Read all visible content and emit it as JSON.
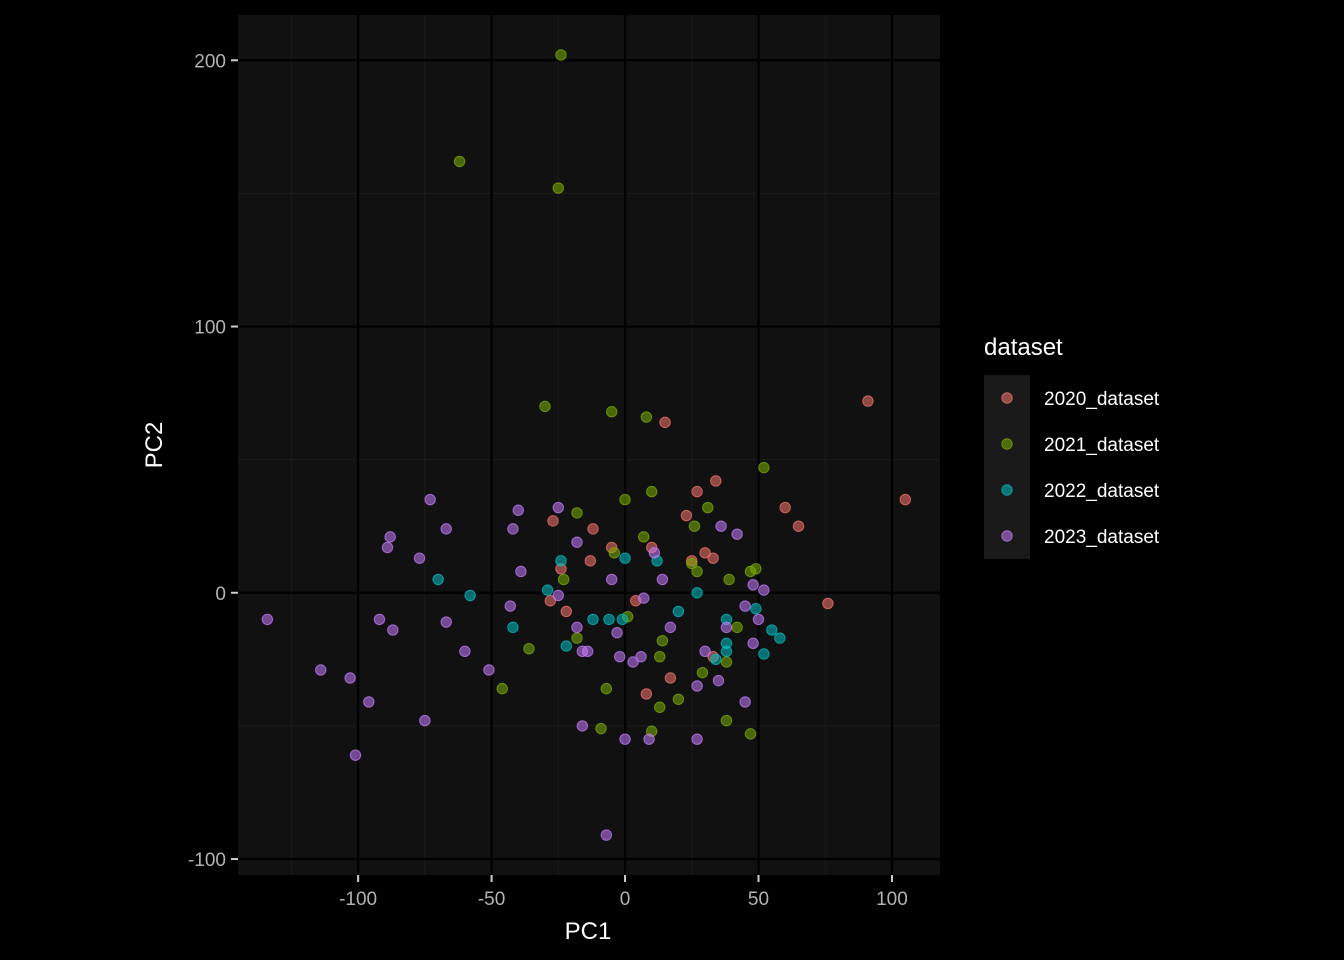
{
  "chart_data": {
    "type": "scatter",
    "xlabel": "PC1",
    "ylabel": "PC2",
    "xlim": [
      -145,
      118
    ],
    "ylim": [
      -106,
      217
    ],
    "x_ticks": [
      -100,
      -50,
      0,
      50,
      100
    ],
    "x_tick_labels": [
      "-100",
      "-50",
      "0",
      "50",
      "100"
    ],
    "y_ticks": [
      -100,
      0,
      100,
      200
    ],
    "y_tick_labels": [
      "-100",
      "0",
      "100",
      "200"
    ],
    "grid": true,
    "legend_title": "dataset",
    "legend_position": "right",
    "colors": {
      "background": "#000000",
      "panel": "#111111",
      "grid_major": "#000000",
      "grid_minor": "#1a1a1a",
      "legend_key": "#1a1a1a"
    },
    "series": [
      {
        "name": "2020_dataset",
        "color": "#F8766D",
        "points": [
          [
            91,
            72
          ],
          [
            105,
            35
          ],
          [
            76,
            -4
          ],
          [
            60,
            32
          ],
          [
            65,
            25
          ],
          [
            34,
            42
          ],
          [
            27,
            38
          ],
          [
            15,
            64
          ],
          [
            23,
            29
          ],
          [
            30,
            15
          ],
          [
            33,
            13
          ],
          [
            33,
            -24
          ],
          [
            25,
            12
          ],
          [
            10,
            17
          ],
          [
            4,
            -3
          ],
          [
            -5,
            17
          ],
          [
            -13,
            12
          ],
          [
            -12,
            24
          ],
          [
            -22,
            -7
          ],
          [
            -24,
            9
          ],
          [
            -28,
            -3
          ],
          [
            -27,
            27
          ],
          [
            17,
            -32
          ],
          [
            8,
            -38
          ]
        ]
      },
      {
        "name": "2021_dataset",
        "color": "#7CAE00",
        "points": [
          [
            -24,
            202
          ],
          [
            -62,
            162
          ],
          [
            -25,
            152
          ],
          [
            -30,
            70
          ],
          [
            -5,
            68
          ],
          [
            8,
            66
          ],
          [
            52,
            47
          ],
          [
            0,
            35
          ],
          [
            10,
            38
          ],
          [
            31,
            32
          ],
          [
            26,
            25
          ],
          [
            7,
            21
          ],
          [
            -4,
            15
          ],
          [
            -18,
            30
          ],
          [
            -23,
            5
          ],
          [
            25,
            11
          ],
          [
            27,
            8
          ],
          [
            47,
            8
          ],
          [
            49,
            9
          ],
          [
            39,
            5
          ],
          [
            42,
            -13
          ],
          [
            1,
            -9
          ],
          [
            -18,
            -17
          ],
          [
            -36,
            -21
          ],
          [
            14,
            -18
          ],
          [
            13,
            -24
          ],
          [
            29,
            -30
          ],
          [
            20,
            -40
          ],
          [
            13,
            -43
          ],
          [
            -7,
            -36
          ],
          [
            -46,
            -36
          ],
          [
            -9,
            -51
          ],
          [
            10,
            -52
          ],
          [
            38,
            -48
          ],
          [
            47,
            -53
          ],
          [
            38,
            -26
          ]
        ]
      },
      {
        "name": "2022_dataset",
        "color": "#00BFC4",
        "points": [
          [
            -24,
            12
          ],
          [
            0,
            13
          ],
          [
            12,
            12
          ],
          [
            -70,
            5
          ],
          [
            -58,
            -1
          ],
          [
            -29,
            1
          ],
          [
            27,
            0
          ],
          [
            20,
            -7
          ],
          [
            -12,
            -10
          ],
          [
            -6,
            -10
          ],
          [
            -1,
            -10
          ],
          [
            38,
            -10
          ],
          [
            38,
            -19
          ],
          [
            38,
            -22
          ],
          [
            34,
            -25
          ],
          [
            49,
            -6
          ],
          [
            55,
            -14
          ],
          [
            58,
            -17
          ],
          [
            52,
            -23
          ],
          [
            -42,
            -13
          ],
          [
            -22,
            -20
          ]
        ]
      },
      {
        "name": "2023_dataset",
        "color": "#C77CFF",
        "points": [
          [
            -73,
            35
          ],
          [
            -67,
            24
          ],
          [
            -88,
            21
          ],
          [
            -89,
            17
          ],
          [
            -77,
            13
          ],
          [
            -40,
            31
          ],
          [
            -25,
            32
          ],
          [
            -42,
            24
          ],
          [
            -39,
            8
          ],
          [
            -18,
            19
          ],
          [
            11,
            15
          ],
          [
            -5,
            5
          ],
          [
            14,
            5
          ],
          [
            36,
            25
          ],
          [
            42,
            22
          ],
          [
            48,
            3
          ],
          [
            52,
            1
          ],
          [
            -25,
            -1
          ],
          [
            7,
            -2
          ],
          [
            45,
            -5
          ],
          [
            50,
            -10
          ],
          [
            38,
            -13
          ],
          [
            -134,
            -10
          ],
          [
            -92,
            -10
          ],
          [
            -87,
            -14
          ],
          [
            -67,
            -11
          ],
          [
            -43,
            -5
          ],
          [
            -18,
            -13
          ],
          [
            -3,
            -15
          ],
          [
            17,
            -13
          ],
          [
            48,
            -19
          ],
          [
            -60,
            -22
          ],
          [
            -51,
            -29
          ],
          [
            -16,
            -22
          ],
          [
            -14,
            -22
          ],
          [
            -2,
            -24
          ],
          [
            3,
            -26
          ],
          [
            6,
            -24
          ],
          [
            30,
            -22
          ],
          [
            27,
            -35
          ],
          [
            35,
            -33
          ],
          [
            -114,
            -29
          ],
          [
            -103,
            -32
          ],
          [
            -96,
            -41
          ],
          [
            -75,
            -48
          ],
          [
            -16,
            -50
          ],
          [
            0,
            -55
          ],
          [
            9,
            -55
          ],
          [
            27,
            -55
          ],
          [
            45,
            -41
          ],
          [
            -101,
            -61
          ],
          [
            -7,
            -91
          ]
        ]
      }
    ]
  }
}
